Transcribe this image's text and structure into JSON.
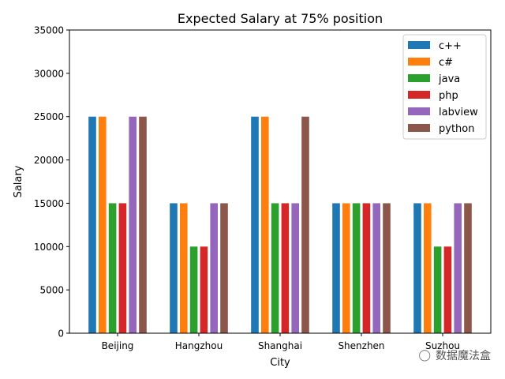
{
  "chart_data": {
    "type": "bar",
    "title": "Expected Salary at 75% position",
    "xlabel": "City",
    "ylabel": "Salary",
    "ylim": [
      0,
      35000
    ],
    "yticks": [
      0,
      5000,
      10000,
      15000,
      20000,
      25000,
      30000,
      35000
    ],
    "categories": [
      "Beijing",
      "Hangzhou",
      "Shanghai",
      "Shenzhen",
      "Suzhou"
    ],
    "series": [
      {
        "name": "c++",
        "color": "#1f77b4",
        "values": [
          25000,
          15000,
          25000,
          15000,
          15000
        ]
      },
      {
        "name": "c#",
        "color": "#ff7f0e",
        "values": [
          25000,
          15000,
          25000,
          15000,
          15000
        ]
      },
      {
        "name": "java",
        "color": "#2ca02c",
        "values": [
          15000,
          10000,
          15000,
          15000,
          10000
        ]
      },
      {
        "name": "php",
        "color": "#d62728",
        "values": [
          15000,
          10000,
          15000,
          15000,
          10000
        ]
      },
      {
        "name": "labview",
        "color": "#9467bd",
        "values": [
          25000,
          15000,
          15000,
          15000,
          15000
        ]
      },
      {
        "name": "python",
        "color": "#8c564b",
        "values": [
          25000,
          15000,
          25000,
          15000,
          15000
        ]
      }
    ],
    "legend_position": "top-right",
    "grid": false
  },
  "watermark": {
    "text": "数据魔法盒",
    "icon": "wechat-icon"
  }
}
